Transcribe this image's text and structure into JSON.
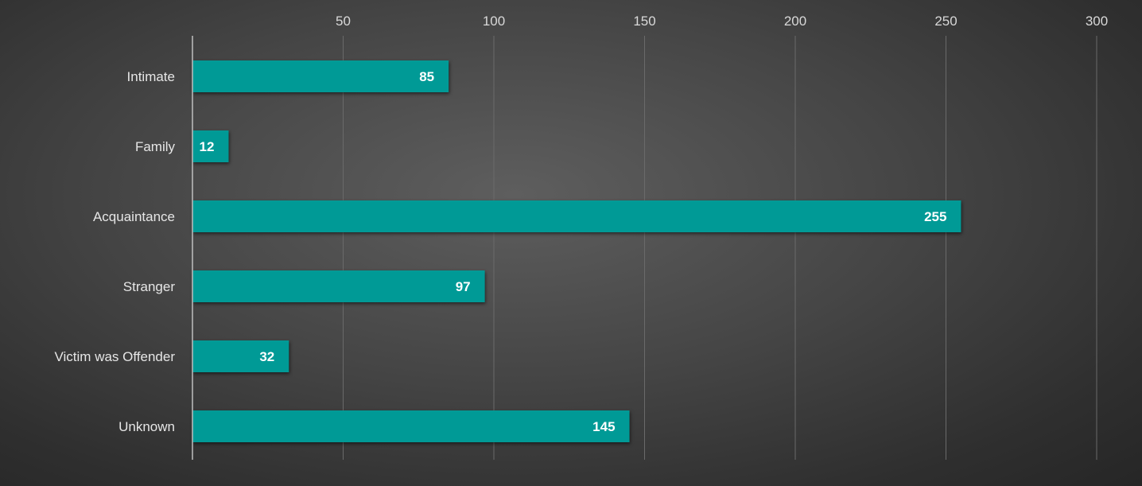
{
  "chart_data": {
    "type": "bar",
    "orientation": "horizontal",
    "categories": [
      "Intimate",
      "Family",
      "Acquaintance",
      "Stranger",
      "Victim was Offender",
      "Unknown"
    ],
    "values": [
      85,
      12,
      255,
      97,
      32,
      145
    ],
    "xlim": [
      0,
      300
    ],
    "xticks": [
      50,
      100,
      150,
      200,
      250,
      300
    ],
    "x_axis_position": "top",
    "grid": true,
    "legend": "none",
    "title": "",
    "xlabel": "",
    "ylabel": "",
    "colors": {
      "bar": "#009a96",
      "background": "#3a3a3a",
      "text": "#e6e6e6"
    }
  }
}
